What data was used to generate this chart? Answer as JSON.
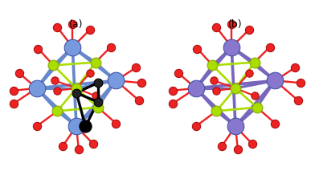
{
  "figsize": [
    3.92,
    2.13
  ],
  "dpi": 100,
  "bg_color": "#ffffff",
  "colors": {
    "blue": "#7799dd",
    "blue_bond": "#6688cc",
    "green": "#aadd00",
    "green_bond": "#99cc00",
    "red": "#ee2222",
    "red_bond": "#cc1111",
    "black": "#000000",
    "black_bond": "#111111",
    "purple": "#8877cc",
    "purple_bond": "#7766bb",
    "white": "#ffffff"
  }
}
